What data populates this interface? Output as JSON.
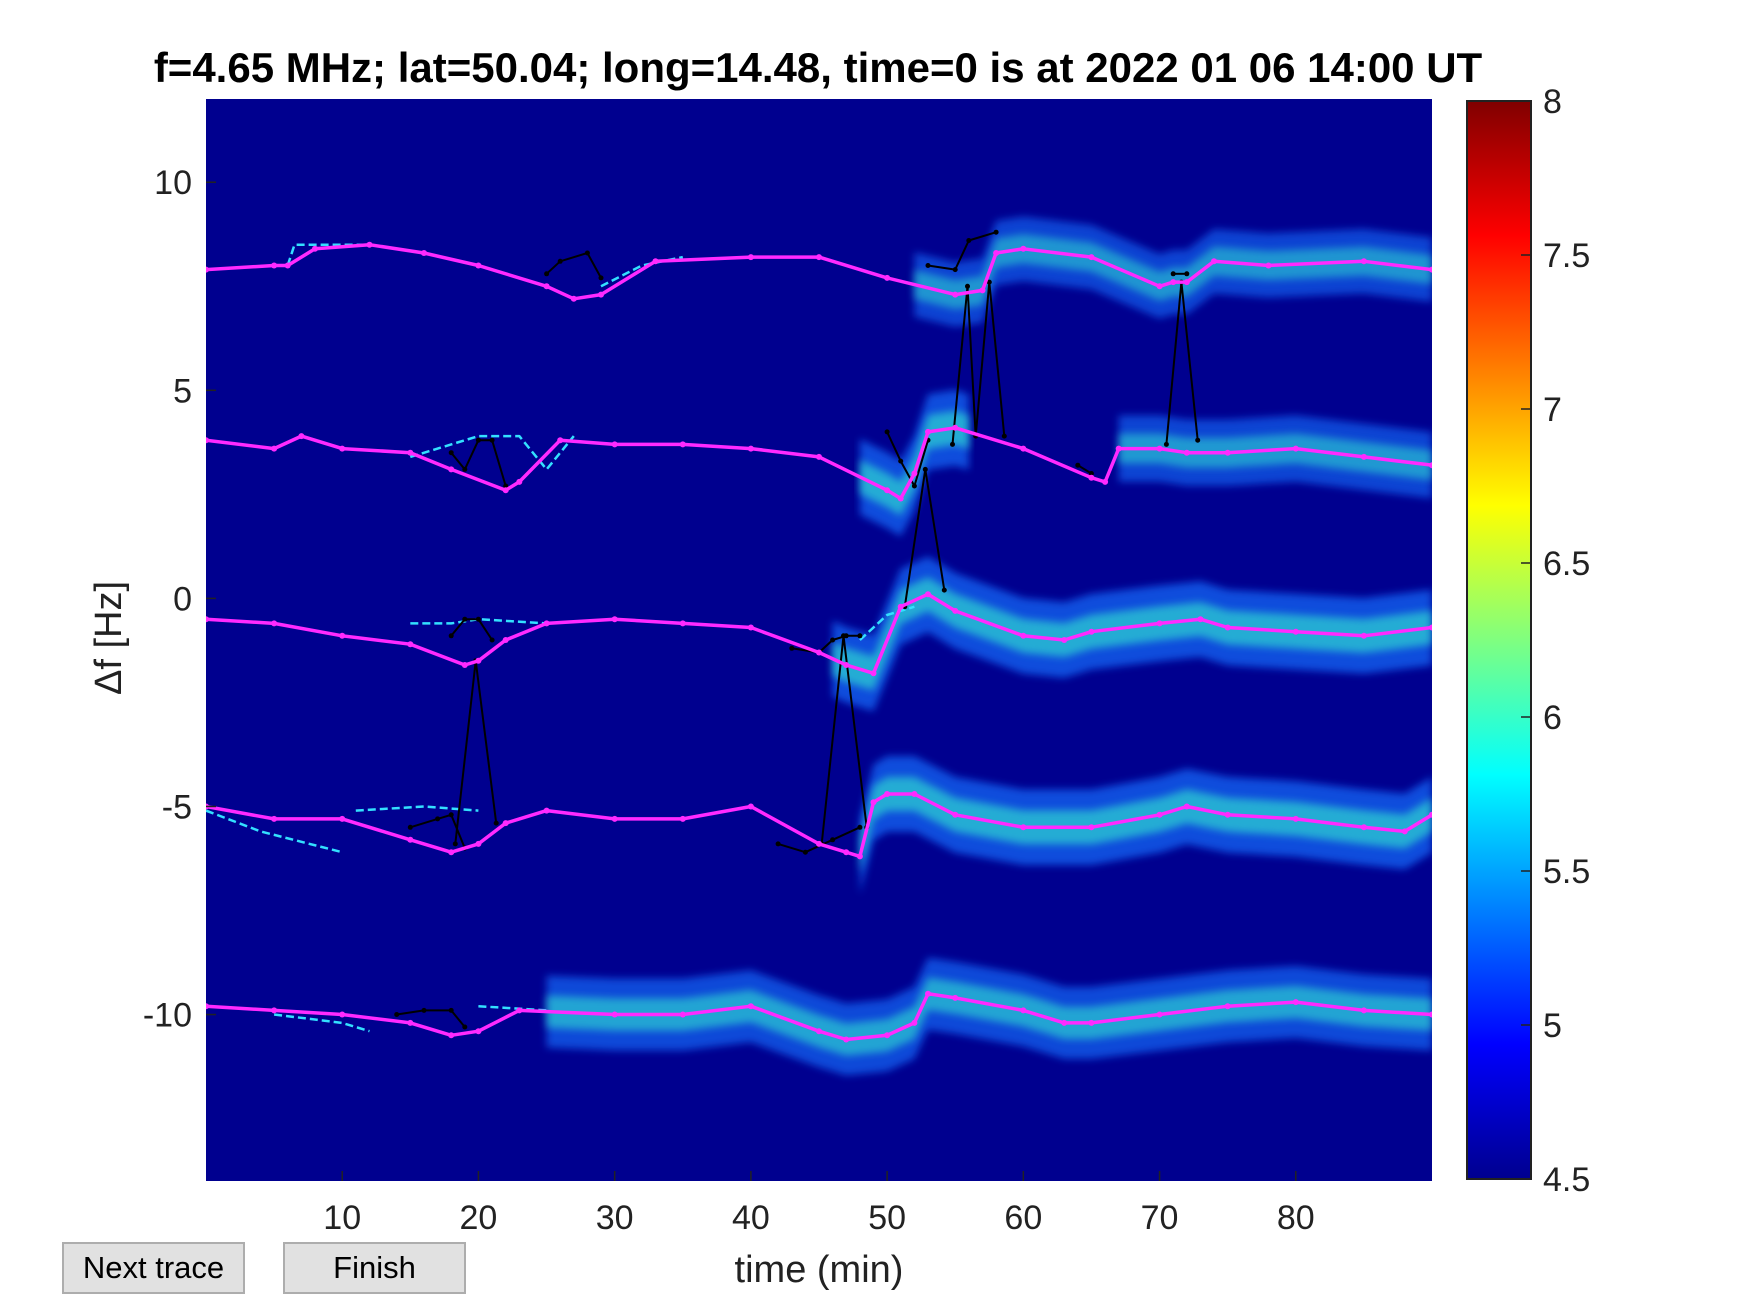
{
  "chart_data": {
    "type": "heatmap",
    "title": "f=4.65 MHz;  lat=50.04; long=14.48, time=0 is at 2022 01 06 14:00 UT",
    "xlabel": "time (min)",
    "ylabel": "Δf [Hz]",
    "xlim": [
      0,
      90
    ],
    "ylim": [
      -14,
      12
    ],
    "xticks": [
      10,
      20,
      30,
      40,
      50,
      60,
      70,
      80
    ],
    "yticks": [
      -10,
      -5,
      0,
      5,
      10
    ],
    "colorbar": {
      "range": [
        4.5,
        8
      ],
      "ticks": [
        "4.5",
        "5",
        "5.5",
        "6",
        "6.5",
        "7",
        "7.5",
        "8"
      ],
      "colormap": "jet"
    },
    "background_color": "#00008f",
    "grid": false,
    "series": [
      {
        "role": "fitted-trace",
        "color": "#ff2aff",
        "traces": [
          {
            "x": [
              0,
              5,
              6,
              8,
              12,
              16,
              20,
              25,
              27,
              29,
              33,
              40,
              45,
              50,
              55,
              57,
              58,
              60,
              65,
              70,
              71,
              72,
              74,
              78,
              85,
              90
            ],
            "y": [
              7.9,
              8.0,
              8.0,
              8.4,
              8.5,
              8.3,
              8.0,
              7.5,
              7.2,
              7.3,
              8.1,
              8.2,
              8.2,
              7.7,
              7.3,
              7.4,
              8.3,
              8.4,
              8.2,
              7.5,
              7.6,
              7.6,
              8.1,
              8.0,
              8.1,
              7.9
            ]
          },
          {
            "x": [
              0,
              5,
              7,
              10,
              15,
              18,
              22,
              23,
              26,
              30,
              35,
              40,
              45,
              50,
              51,
              52,
              53,
              55,
              60,
              65,
              66,
              67,
              70,
              72,
              75,
              80,
              85,
              90
            ],
            "y": [
              3.8,
              3.6,
              3.9,
              3.6,
              3.5,
              3.1,
              2.6,
              2.8,
              3.8,
              3.7,
              3.7,
              3.6,
              3.4,
              2.6,
              2.4,
              3.0,
              4.0,
              4.1,
              3.6,
              2.9,
              2.8,
              3.6,
              3.6,
              3.5,
              3.5,
              3.6,
              3.4,
              3.2
            ]
          },
          {
            "x": [
              0,
              5,
              10,
              15,
              19,
              20,
              22,
              25,
              30,
              35,
              40,
              45,
              47,
              49,
              51,
              53,
              55,
              60,
              63,
              65,
              70,
              73,
              75,
              80,
              85,
              90
            ],
            "y": [
              -0.5,
              -0.6,
              -0.9,
              -1.1,
              -1.6,
              -1.5,
              -1.0,
              -0.6,
              -0.5,
              -0.6,
              -0.7,
              -1.3,
              -1.6,
              -1.8,
              -0.2,
              0.1,
              -0.3,
              -0.9,
              -1.0,
              -0.8,
              -0.6,
              -0.5,
              -0.7,
              -0.8,
              -0.9,
              -0.7
            ]
          },
          {
            "x": [
              0,
              5,
              10,
              15,
              18,
              20,
              22,
              25,
              30,
              35,
              40,
              45,
              47,
              48,
              49,
              50,
              52,
              55,
              60,
              65,
              70,
              72,
              75,
              80,
              85,
              88,
              90
            ],
            "y": [
              -5.0,
              -5.3,
              -5.3,
              -5.8,
              -6.1,
              -5.9,
              -5.4,
              -5.1,
              -5.3,
              -5.3,
              -5.0,
              -5.9,
              -6.1,
              -6.2,
              -4.9,
              -4.7,
              -4.7,
              -5.2,
              -5.5,
              -5.5,
              -5.2,
              -5.0,
              -5.2,
              -5.3,
              -5.5,
              -5.6,
              -5.2
            ]
          },
          {
            "x": [
              0,
              5,
              10,
              15,
              18,
              20,
              23,
              30,
              35,
              40,
              45,
              47,
              50,
              52,
              53,
              55,
              60,
              63,
              65,
              70,
              75,
              80,
              85,
              90
            ],
            "y": [
              -9.8,
              -9.9,
              -10.0,
              -10.2,
              -10.5,
              -10.4,
              -9.9,
              -10.0,
              -10.0,
              -9.8,
              -10.4,
              -10.6,
              -10.5,
              -10.2,
              -9.5,
              -9.6,
              -9.9,
              -10.2,
              -10.2,
              -10.0,
              -9.8,
              -9.7,
              -9.9,
              -10.0
            ]
          }
        ]
      },
      {
        "role": "raw-trace",
        "color": "#000000",
        "traces": [
          {
            "x": [
              25,
              26,
              28,
              29
            ],
            "y": [
              7.8,
              8.1,
              8.3,
              7.7
            ]
          },
          {
            "x": [
              53,
              55,
              56,
              58
            ],
            "y": [
              8.0,
              7.9,
              8.6,
              8.8
            ]
          },
          {
            "x": [
              71,
              72
            ],
            "y": [
              7.8,
              7.8
            ]
          },
          {
            "x": [
              18,
              19,
              20,
              21,
              22
            ],
            "y": [
              3.5,
              3.1,
              3.8,
              3.8,
              2.7
            ]
          },
          {
            "x": [
              50,
              51,
              52,
              53
            ],
            "y": [
              4.0,
              3.3,
              2.7,
              3.8
            ]
          },
          {
            "x": [
              64,
              65
            ],
            "y": [
              3.2,
              3.0
            ]
          },
          {
            "x": [
              18,
              19,
              20,
              21
            ],
            "y": [
              -0.9,
              -0.5,
              -0.5,
              -1.0
            ]
          },
          {
            "x": [
              43,
              45,
              46,
              47,
              48
            ],
            "y": [
              -1.2,
              -1.3,
              -1.0,
              -0.9,
              -0.9
            ]
          },
          {
            "x": [
              15,
              17,
              18,
              19
            ],
            "y": [
              -5.5,
              -5.3,
              -5.2,
              -6.0
            ]
          },
          {
            "x": [
              42,
              44,
              46,
              48
            ],
            "y": [
              -5.9,
              -6.1,
              -5.8,
              -5.5
            ]
          },
          {
            "x": [
              14,
              16,
              18,
              19
            ],
            "y": [
              -10.0,
              -9.9,
              -9.9,
              -10.3
            ]
          },
          {
            "x": [
              18.3,
              19.8,
              21.3
            ],
            "y": [
              -5.9,
              -1.5,
              -5.4
            ]
          },
          {
            "x": [
              45.2,
              46.8,
              48.5
            ],
            "y": [
              -5.9,
              -0.9,
              -5.5
            ]
          },
          {
            "x": [
              51.3,
              52.8,
              54.2
            ],
            "y": [
              -0.2,
              3.1,
              0.2
            ]
          },
          {
            "x": [
              54.8,
              55.9,
              56.5,
              57.5,
              58.6
            ],
            "y": [
              3.7,
              7.5,
              3.9,
              7.6,
              3.9
            ]
          },
          {
            "x": [
              70.5,
              71.6,
              72.8
            ],
            "y": [
              3.7,
              7.6,
              3.8
            ]
          }
        ]
      },
      {
        "role": "cyan-trace",
        "color": "#33e0ff",
        "traces": [
          {
            "x": [
              6,
              6.5,
              8,
              12
            ],
            "y": [
              8.0,
              8.5,
              8.5,
              8.5
            ]
          },
          {
            "x": [
              29,
              32,
              35
            ],
            "y": [
              7.5,
              8.0,
              8.2
            ]
          },
          {
            "x": [
              15,
              20,
              23,
              25,
              27
            ],
            "y": [
              3.4,
              3.9,
              3.9,
              3.1,
              3.9
            ]
          },
          {
            "x": [
              15,
              18,
              20,
              25
            ],
            "y": [
              -0.6,
              -0.6,
              -0.5,
              -0.6
            ]
          },
          {
            "x": [
              48,
              50,
              52
            ],
            "y": [
              -1.0,
              -0.4,
              -0.2
            ]
          },
          {
            "x": [
              0,
              4,
              10
            ],
            "y": [
              -5.1,
              -5.6,
              -6.1
            ]
          },
          {
            "x": [
              11,
              16,
              20
            ],
            "y": [
              -5.1,
              -5.0,
              -5.1
            ]
          },
          {
            "x": [
              5,
              10,
              12
            ],
            "y": [
              -10.0,
              -10.2,
              -10.4
            ]
          },
          {
            "x": [
              20,
              25
            ],
            "y": [
              -9.8,
              -9.9
            ]
          }
        ]
      }
    ],
    "intensity_bands": [
      {
        "center_series": 0,
        "x_from": 52,
        "x_to": 90,
        "strength": 0.5
      },
      {
        "center_series": 1,
        "x_from": 48,
        "x_to": 56,
        "strength": 0.8
      },
      {
        "center_series": 1,
        "x_from": 67,
        "x_to": 90,
        "strength": 0.55
      },
      {
        "center_series": 2,
        "x_from": 46,
        "x_to": 90,
        "strength": 0.8
      },
      {
        "center_series": 3,
        "x_from": 48,
        "x_to": 90,
        "strength": 0.8
      },
      {
        "center_series": 4,
        "x_from": 25,
        "x_to": 90,
        "strength": 0.7
      }
    ]
  },
  "buttons": {
    "next_label": "Next trace",
    "finish_label": "Finish"
  }
}
